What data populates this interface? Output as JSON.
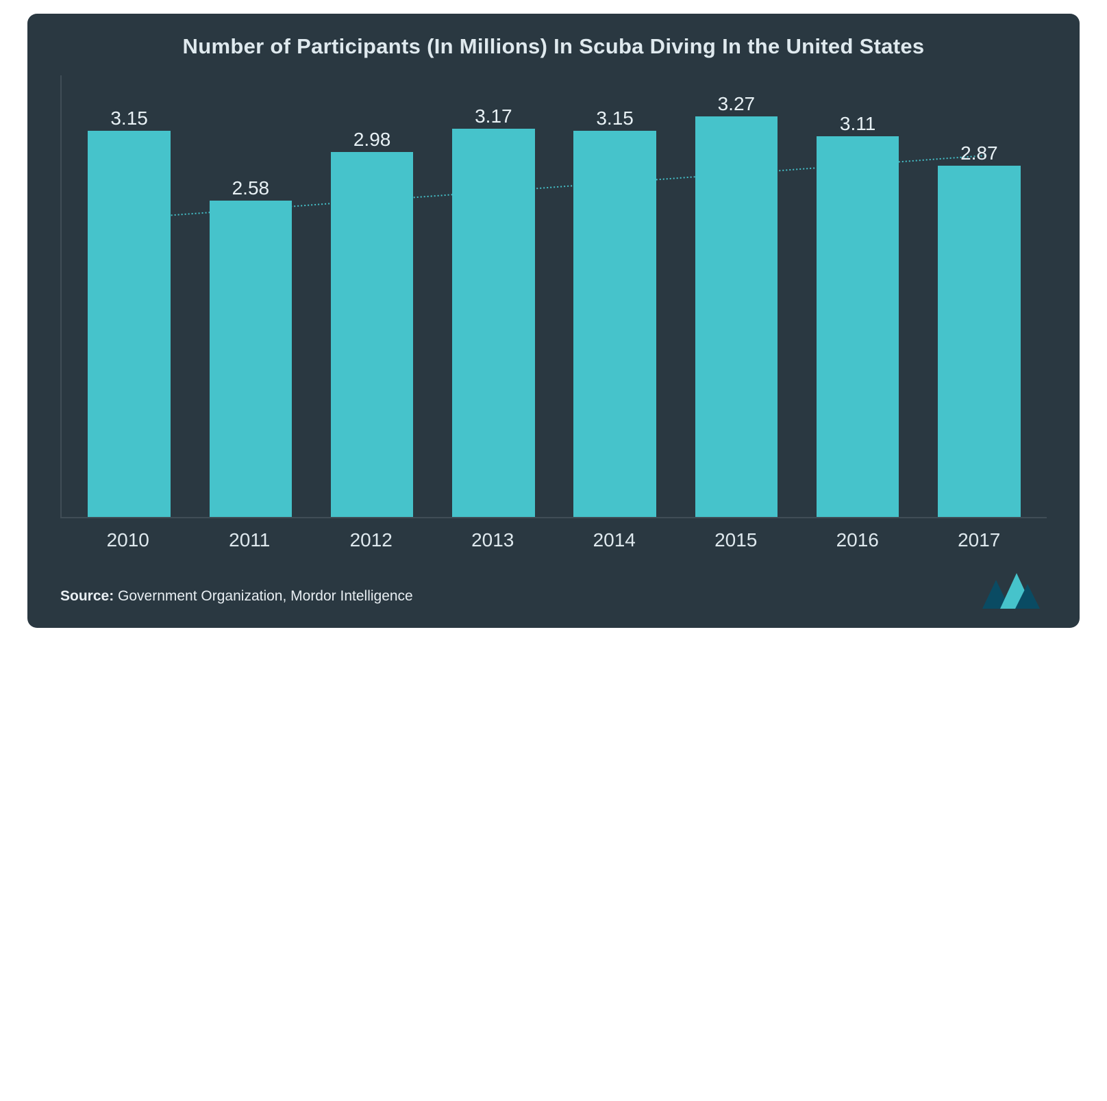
{
  "chart": {
    "type": "bar",
    "title": "Number of Participants (In Millions) In Scuba Diving In the United States",
    "title_fontsize": 31,
    "background_color": "#2a3841",
    "bar_color": "#46c3cb",
    "text_color": "#dfe9ee",
    "axis_color": "#404d56",
    "categories": [
      "2010",
      "2011",
      "2012",
      "2013",
      "2014",
      "2015",
      "2016",
      "2017"
    ],
    "values": [
      3.15,
      2.58,
      2.98,
      3.17,
      3.15,
      3.27,
      3.11,
      2.87
    ],
    "value_labels": [
      "3.15",
      "2.58",
      "2.98",
      "3.17",
      "3.15",
      "3.27",
      "3.11",
      "2.87"
    ],
    "ylim_max": 3.27,
    "label_fontsize": 28,
    "xaxis_fontsize": 28,
    "bar_width_ratio": 0.68,
    "trendline": {
      "color": "#46c3cb",
      "style": "dotted",
      "width": 2,
      "start_value": 2.93,
      "end_value": 3.14
    },
    "source_label": "Source:",
    "source_text": " Government Organization, Mordor Intelligence",
    "logo_colors": {
      "dark": "#0a4b63",
      "light": "#46c3cb"
    }
  }
}
